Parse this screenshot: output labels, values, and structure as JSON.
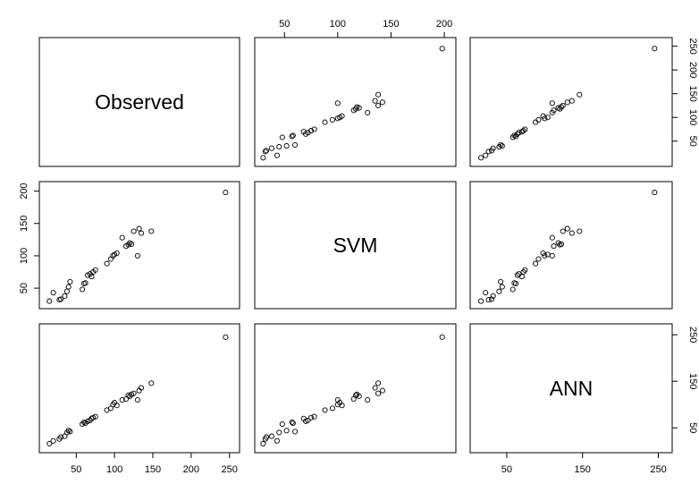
{
  "chart_data": {
    "type": "scatter",
    "variables": [
      "Observed",
      "SVM",
      "ANN"
    ],
    "axes": {
      "Observed": {
        "range": [
          10,
          255
        ],
        "ticks": [
          50,
          100,
          150,
          200,
          250
        ]
      },
      "SVM": {
        "range": [
          28,
          205
        ],
        "ticks": [
          50,
          100,
          150,
          200
        ]
      },
      "ANN": {
        "range": [
          10,
          260
        ],
        "ticks": [
          50,
          150,
          250
        ]
      }
    },
    "tick_sides": {
      "top_cols": [
        1
      ],
      "bottom_cols": [
        0,
        2
      ],
      "left_rows": [
        1
      ],
      "right_rows": [
        0,
        2
      ]
    },
    "points": [
      {
        "Observed": 15,
        "SVM": 30,
        "ANN": 16
      },
      {
        "Observed": 20,
        "SVM": 43,
        "ANN": 22
      },
      {
        "Observed": 28,
        "SVM": 32,
        "ANN": 26
      },
      {
        "Observed": 30,
        "SVM": 33,
        "ANN": 30
      },
      {
        "Observed": 35,
        "SVM": 38,
        "ANN": 32
      },
      {
        "Observed": 38,
        "SVM": 45,
        "ANN": 40
      },
      {
        "Observed": 40,
        "SVM": 52,
        "ANN": 44
      },
      {
        "Observed": 42,
        "SVM": 60,
        "ANN": 42
      },
      {
        "Observed": 58,
        "SVM": 48,
        "ANN": 58
      },
      {
        "Observed": 60,
        "SVM": 57,
        "ANN": 62
      },
      {
        "Observed": 62,
        "SVM": 58,
        "ANN": 60
      },
      {
        "Observed": 65,
        "SVM": 70,
        "ANN": 64
      },
      {
        "Observed": 68,
        "SVM": 72,
        "ANN": 66
      },
      {
        "Observed": 70,
        "SVM": 68,
        "ANN": 70
      },
      {
        "Observed": 72,
        "SVM": 75,
        "ANN": 72
      },
      {
        "Observed": 75,
        "SVM": 78,
        "ANN": 74
      },
      {
        "Observed": 90,
        "SVM": 88,
        "ANN": 88
      },
      {
        "Observed": 95,
        "SVM": 95,
        "ANN": 92
      },
      {
        "Observed": 98,
        "SVM": 100,
        "ANN": 100
      },
      {
        "Observed": 100,
        "SVM": 102,
        "ANN": 104
      },
      {
        "Observed": 103,
        "SVM": 104,
        "ANN": 98
      },
      {
        "Observed": 110,
        "SVM": 128,
        "ANN": 110
      },
      {
        "Observed": 115,
        "SVM": 115,
        "ANN": 112
      },
      {
        "Observed": 118,
        "SVM": 117,
        "ANN": 120
      },
      {
        "Observed": 120,
        "SVM": 120,
        "ANN": 118
      },
      {
        "Observed": 122,
        "SVM": 118,
        "ANN": 122
      },
      {
        "Observed": 125,
        "SVM": 138,
        "ANN": 124
      },
      {
        "Observed": 130,
        "SVM": 100,
        "ANN": 110
      },
      {
        "Observed": 132,
        "SVM": 142,
        "ANN": 130
      },
      {
        "Observed": 135,
        "SVM": 135,
        "ANN": 136
      },
      {
        "Observed": 148,
        "SVM": 138,
        "ANN": 146
      },
      {
        "Observed": 245,
        "SVM": 198,
        "ANN": 245
      }
    ]
  }
}
